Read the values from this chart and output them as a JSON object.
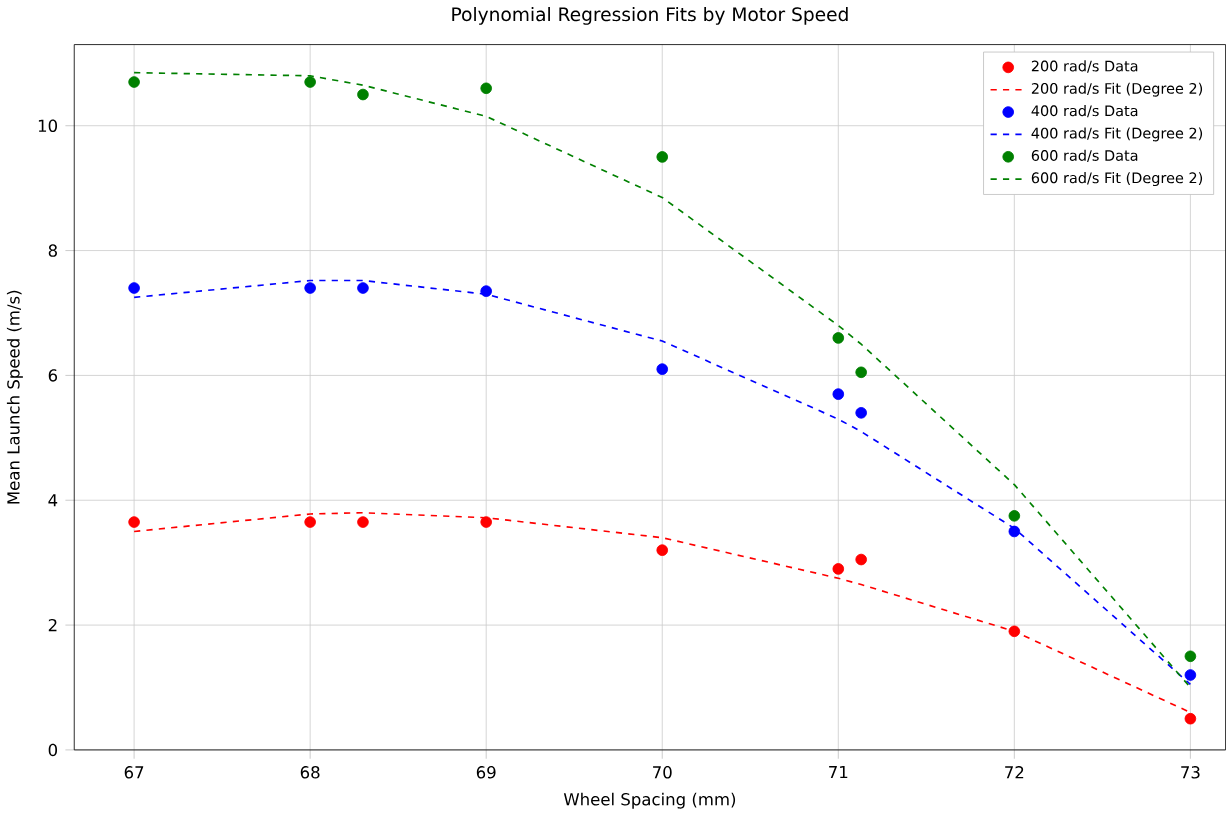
{
  "chart_data": {
    "type": "scatter",
    "title": "Polynomial Regression Fits by Motor Speed",
    "xlabel": "Wheel Spacing (mm)",
    "ylabel": "Mean Launch Speed (m/s)",
    "x": [
      67,
      68,
      68.3,
      69,
      70,
      71,
      71.13,
      72,
      73
    ],
    "series": [
      {
        "name": "200 rad/s Data",
        "color": "#ff0000",
        "marker": "circle",
        "values": [
          3.65,
          3.65,
          3.65,
          3.65,
          3.2,
          2.9,
          3.05,
          1.9,
          0.5
        ]
      },
      {
        "name": "200 rad/s Fit (Degree 2)",
        "type": "line",
        "color": "#ff0000",
        "line_style": "dashed",
        "values": [
          3.5,
          3.78,
          3.8,
          3.72,
          3.4,
          2.75,
          2.65,
          1.9,
          0.6
        ]
      },
      {
        "name": "400 rad/s Data",
        "color": "#0000ff",
        "marker": "circle",
        "values": [
          7.4,
          7.4,
          7.4,
          7.35,
          6.1,
          5.7,
          5.4,
          3.5,
          1.2
        ]
      },
      {
        "name": "400 rad/s Fit (Degree 2)",
        "type": "line",
        "color": "#0000ff",
        "line_style": "dashed",
        "values": [
          7.25,
          7.52,
          7.52,
          7.3,
          6.55,
          5.3,
          5.1,
          3.55,
          1.05
        ]
      },
      {
        "name": "600 rad/s Data",
        "color": "#008000",
        "marker": "circle",
        "values": [
          10.7,
          10.7,
          10.5,
          10.6,
          9.5,
          6.6,
          6.05,
          3.75,
          1.5
        ]
      },
      {
        "name": "600 rad/s Fit (Degree 2)",
        "type": "line",
        "color": "#008000",
        "line_style": "dashed",
        "values": [
          10.85,
          10.8,
          10.65,
          10.15,
          8.85,
          6.8,
          6.5,
          4.25,
          1.0
        ]
      }
    ],
    "xlim": [
      66.66,
      73.2
    ],
    "ylim": [
      0,
      11.3
    ],
    "xticks": [
      67,
      68,
      69,
      70,
      71,
      72,
      73
    ],
    "yticks": [
      0,
      2,
      4,
      6,
      8,
      10
    ],
    "grid": true,
    "legend": "top right"
  }
}
